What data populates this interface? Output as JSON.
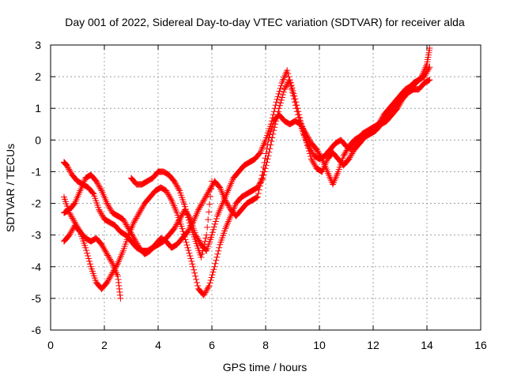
{
  "chart_data": {
    "type": "scatter",
    "title": "Day 001 of 2022, Sidereal Day-to-day VTEC variation (SDTVAR) for receiver alda",
    "xlabel": "GPS time / hours",
    "ylabel": "SDTVAR / TECUs",
    "xlim": [
      0,
      16
    ],
    "ylim": [
      -6,
      3
    ],
    "xticks": [
      "0",
      "2",
      "4",
      "6",
      "8",
      "10",
      "12",
      "14",
      "16"
    ],
    "yticks": [
      "3",
      "2",
      "1",
      "0",
      "-1",
      "-2",
      "-3",
      "-4",
      "-5",
      "-6"
    ],
    "grid": true,
    "marker": "plus",
    "color": "#ff0000",
    "series": [
      {
        "x": [
          0.5,
          0.6,
          0.8,
          1.0,
          1.2,
          1.4,
          1.6,
          1.8,
          2.0,
          2.2,
          2.4,
          2.6,
          2.8,
          3.0,
          3.2,
          3.4,
          3.6,
          3.8,
          4.0,
          4.2,
          4.4,
          4.6,
          4.8,
          5.0,
          5.2,
          5.4,
          5.6,
          5.8,
          6.0,
          6.2,
          6.4,
          6.6,
          6.8,
          7.0,
          7.2,
          7.4,
          7.6,
          7.8,
          8.0,
          8.2,
          8.4,
          8.6,
          8.8,
          9.0,
          9.2,
          9.4,
          9.6,
          9.8,
          10.0,
          10.2,
          10.4,
          10.6,
          10.8,
          11.0,
          11.2,
          11.4,
          11.6,
          11.8,
          12.0,
          12.2,
          12.4,
          12.6,
          12.8,
          13.0,
          13.2,
          13.4,
          13.6,
          13.8,
          14.0,
          14.1
        ],
        "y": [
          -0.7,
          -0.8,
          -1.1,
          -1.3,
          -1.4,
          -1.5,
          -1.7,
          -2.2,
          -2.5,
          -2.6,
          -2.7,
          -2.9,
          -3.0,
          -3.2,
          -3.4,
          -3.5,
          -3.5,
          -3.4,
          -3.3,
          -3.2,
          -3.0,
          -2.8,
          -2.5,
          -2.2,
          -2.5,
          -3.0,
          -3.3,
          -3.5,
          -3.0,
          -2.4,
          -2.0,
          -1.6,
          -1.2,
          -1.0,
          -0.8,
          -0.7,
          -0.6,
          -0.4,
          0.0,
          0.5,
          1.2,
          1.8,
          2.2,
          1.5,
          0.8,
          0.2,
          -0.2,
          -0.5,
          -0.6,
          -0.5,
          -0.3,
          -0.1,
          0.0,
          -0.2,
          -0.3,
          0.0,
          0.2,
          0.3,
          0.4,
          0.5,
          0.8,
          1.0,
          1.2,
          1.4,
          1.6,
          1.7,
          1.8,
          2.0,
          2.4,
          2.9
        ]
      },
      {
        "x": [
          0.5,
          0.7,
          0.9,
          1.1,
          1.3,
          1.5,
          1.7,
          1.9,
          2.1,
          2.3,
          2.5,
          2.7,
          2.9,
          3.1,
          3.3,
          3.5,
          3.7,
          3.9,
          4.1,
          4.3,
          4.5,
          4.7,
          4.9,
          5.1,
          5.3,
          5.5,
          5.7,
          5.9,
          6.1,
          6.3,
          6.5,
          6.7,
          6.9,
          7.1,
          7.3,
          7.5,
          7.7,
          7.9,
          8.1,
          8.3,
          8.5,
          8.7,
          8.9,
          9.1,
          9.3,
          9.5,
          9.7,
          9.9,
          10.1,
          10.3,
          10.5,
          10.7,
          10.9,
          11.1,
          11.3,
          11.5,
          11.7,
          11.9,
          12.1,
          12.3,
          12.5,
          12.7,
          12.9,
          13.1,
          13.3,
          13.5,
          13.7,
          13.9,
          14.1
        ],
        "y": [
          -3.2,
          -3.0,
          -2.7,
          -2.9,
          -3.4,
          -4.0,
          -4.5,
          -4.7,
          -4.5,
          -4.2,
          -3.9,
          -3.5,
          -3.0,
          -2.6,
          -2.3,
          -2.0,
          -1.8,
          -1.6,
          -1.5,
          -1.6,
          -1.9,
          -2.3,
          -2.8,
          -3.4,
          -4.0,
          -4.7,
          -4.9,
          -4.6,
          -4.0,
          -3.3,
          -2.8,
          -2.4,
          -2.0,
          -1.8,
          -1.7,
          -1.6,
          -1.5,
          -1.2,
          -0.5,
          0.3,
          1.0,
          1.6,
          1.9,
          1.3,
          0.6,
          0.0,
          -0.6,
          -0.9,
          -1.0,
          -0.6,
          -0.4,
          -0.6,
          -0.8,
          -0.6,
          -0.3,
          -0.1,
          0.1,
          0.2,
          0.3,
          0.5,
          0.6,
          0.8,
          1.0,
          1.3,
          1.5,
          1.6,
          1.6,
          1.8,
          1.9
        ]
      },
      {
        "x": [
          0.5,
          0.7,
          0.9,
          1.1,
          1.3,
          1.5,
          1.7,
          1.9,
          2.1,
          2.3,
          2.5,
          2.7,
          2.9,
          3.1,
          3.3,
          3.5,
          3.7,
          3.9,
          4.1,
          4.3,
          4.5,
          4.7,
          4.9,
          5.1,
          5.3,
          5.5,
          5.7,
          5.9,
          6.1,
          6.3,
          6.5,
          6.7,
          6.9,
          7.1,
          7.3,
          7.5,
          7.7,
          7.9,
          8.1,
          8.3,
          8.5,
          8.7,
          8.9,
          9.1,
          9.3,
          9.5,
          9.7,
          9.9,
          10.1,
          10.3,
          10.5,
          10.7,
          10.9,
          11.1,
          11.3,
          11.5,
          11.7,
          11.9,
          12.1,
          12.3,
          12.5,
          12.7,
          12.9,
          13.1,
          13.3,
          13.5,
          13.7,
          13.9,
          14.1
        ],
        "y": [
          -2.3,
          -2.2,
          -2.0,
          -1.6,
          -1.2,
          -1.1,
          -1.3,
          -1.6,
          -2.0,
          -2.3,
          -2.4,
          -2.5,
          -2.8,
          -3.1,
          -3.4,
          -3.6,
          -3.5,
          -3.3,
          -3.1,
          -3.2,
          -3.4,
          -3.3,
          -3.1,
          -2.9,
          -2.6,
          -2.2,
          -1.9,
          -1.6,
          -1.3,
          -1.5,
          -1.9,
          -2.2,
          -2.4,
          -2.2,
          -2.0,
          -1.9,
          -1.8,
          -1.0,
          0.0,
          0.6,
          0.8,
          0.6,
          0.5,
          0.6,
          0.5,
          0.2,
          -0.1,
          -0.3,
          -0.6,
          -1.0,
          -1.4,
          -1.0,
          -0.5,
          -0.2,
          0.0,
          0.1,
          0.2,
          0.3,
          0.4,
          0.6,
          0.8,
          1.0,
          1.2,
          1.4,
          1.6,
          1.8,
          1.9,
          2.0,
          2.3
        ]
      },
      {
        "x": [
          0.5,
          0.7,
          0.9,
          1.1,
          1.3,
          1.5,
          1.7,
          1.9,
          2.1,
          2.3,
          2.5,
          2.6
        ],
        "y": [
          -1.8,
          -2.3,
          -2.6,
          -2.9,
          -3.1,
          -3.2,
          -3.1,
          -3.3,
          -3.6,
          -3.9,
          -4.3,
          -5.0
        ]
      },
      {
        "x": [
          3.0,
          3.2,
          3.4,
          3.6,
          3.8,
          4.0,
          4.2,
          4.4,
          4.6,
          4.8,
          5.0,
          5.2,
          5.4,
          5.6,
          5.8,
          6.0
        ],
        "y": [
          -1.2,
          -1.4,
          -1.4,
          -1.3,
          -1.2,
          -1.0,
          -1.0,
          -1.1,
          -1.3,
          -1.6,
          -2.1,
          -2.7,
          -3.2,
          -3.7,
          -3.0,
          -1.3
        ]
      }
    ]
  }
}
